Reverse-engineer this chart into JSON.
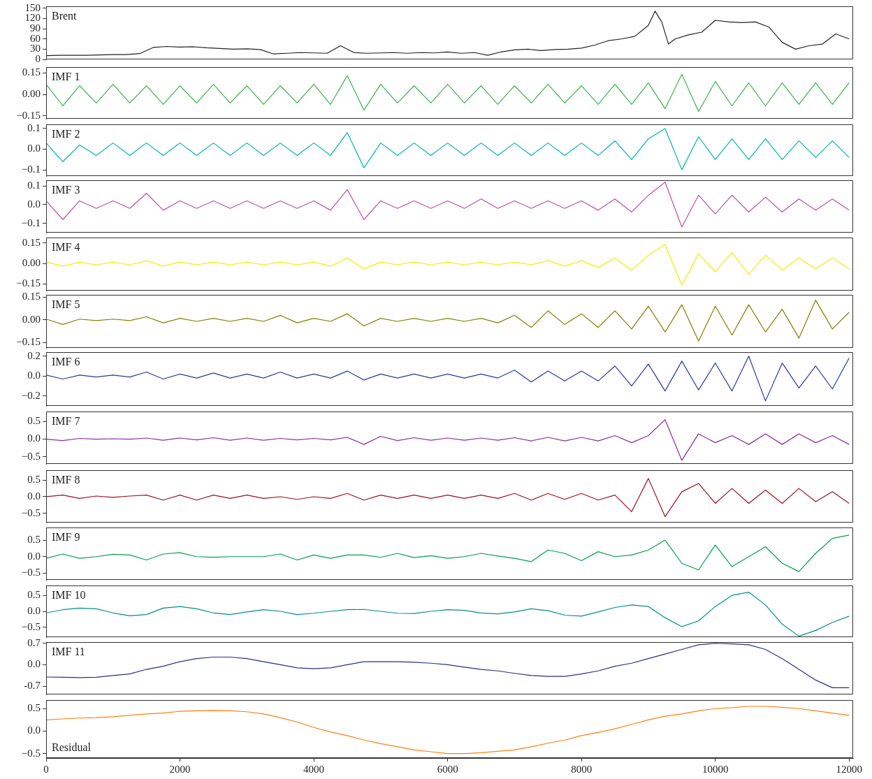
{
  "chart_data": [
    {
      "type": "line",
      "x": [
        0,
        200,
        400,
        600,
        800,
        1000,
        1200,
        1400,
        1600,
        1800,
        2000,
        2200,
        2400,
        2600,
        2800,
        3000,
        3200,
        3400,
        3600,
        3800,
        4000,
        4200,
        4400,
        4600,
        4800,
        5000,
        5200,
        5400,
        5600,
        5800,
        6000,
        6200,
        6400,
        6600,
        6800,
        7000,
        7200,
        7400,
        7600,
        7800,
        8000,
        8200,
        8400,
        8600,
        8800,
        9000,
        9100,
        9200,
        9300,
        9400,
        9600,
        9800,
        10000,
        10200,
        10400,
        10600,
        10800,
        11000,
        11200,
        11400,
        11600,
        11800,
        12000
      ],
      "series": [
        {
          "name": "Brent",
          "color": "#222222",
          "values": [
            11,
            12,
            12,
            12,
            13,
            14,
            14,
            17,
            35,
            38,
            36,
            37,
            34,
            32,
            30,
            31,
            29,
            16,
            18,
            20,
            19,
            18,
            40,
            20,
            18,
            19,
            20,
            18,
            20,
            19,
            22,
            18,
            20,
            12,
            22,
            28,
            30,
            26,
            29,
            30,
            33,
            42,
            55,
            60,
            68,
            100,
            142,
            110,
            45,
            60,
            72,
            80,
            115,
            110,
            108,
            110,
            95,
            50,
            30,
            40,
            45,
            75,
            60
          ]
        }
      ],
      "xlim": [
        0,
        12060
      ],
      "ylim": [
        0,
        156
      ],
      "yticks": [
        0,
        30,
        60,
        90,
        120,
        150
      ],
      "tick_labels": "y",
      "legend": false,
      "grid": false,
      "marker": "none",
      "line_style": "solid"
    },
    {
      "type": "line",
      "x": [
        0,
        250,
        500,
        750,
        1000,
        1250,
        1500,
        1750,
        2000,
        2250,
        2500,
        2750,
        3000,
        3250,
        3500,
        3750,
        4000,
        4250,
        4500,
        4750,
        5000,
        5250,
        5500,
        5750,
        6000,
        6250,
        6500,
        6750,
        7000,
        7250,
        7500,
        7750,
        8000,
        8250,
        8500,
        8750,
        9000,
        9250,
        9500,
        9750,
        10000,
        10250,
        10500,
        10750,
        11000,
        11250,
        11500,
        11750,
        12000
      ],
      "series": [
        {
          "name": "IMF 1",
          "color": "#3cb44b",
          "values": [
            0.07,
            -0.08,
            0.06,
            -0.06,
            0.07,
            -0.06,
            0.06,
            -0.07,
            0.06,
            -0.06,
            0.07,
            -0.06,
            0.06,
            -0.07,
            0.06,
            -0.06,
            0.07,
            -0.07,
            0.13,
            -0.11,
            0.07,
            -0.06,
            0.06,
            -0.06,
            0.07,
            -0.06,
            0.06,
            -0.07,
            0.06,
            -0.06,
            0.07,
            -0.06,
            0.06,
            -0.07,
            0.07,
            -0.07,
            0.08,
            -0.1,
            0.14,
            -0.12,
            0.09,
            -0.08,
            0.08,
            -0.08,
            0.08,
            -0.07,
            0.08,
            -0.07,
            0.08
          ]
        }
      ],
      "xlim": [
        0,
        12060
      ],
      "ylim": [
        -0.17,
        0.19
      ],
      "yticks": [
        {
          "value": -0.15,
          "label": "−0.15"
        },
        {
          "value": 0,
          "label": "0.00"
        },
        0.15
      ],
      "tick_labels": "y",
      "legend": false,
      "grid": false,
      "marker": "none",
      "line_style": "solid"
    },
    {
      "type": "line",
      "x": [
        0,
        250,
        500,
        750,
        1000,
        1250,
        1500,
        1750,
        2000,
        2250,
        2500,
        2750,
        3000,
        3250,
        3500,
        3750,
        4000,
        4250,
        4500,
        4750,
        5000,
        5250,
        5500,
        5750,
        6000,
        6250,
        6500,
        6750,
        7000,
        7250,
        7500,
        7750,
        8000,
        8250,
        8500,
        8750,
        9000,
        9250,
        9500,
        9750,
        10000,
        10250,
        10500,
        10750,
        11000,
        11250,
        11500,
        11750,
        12000
      ],
      "series": [
        {
          "name": "IMF 2",
          "color": "#00b5ad",
          "values": [
            0.03,
            -0.06,
            0.02,
            -0.03,
            0.03,
            -0.03,
            0.03,
            -0.03,
            0.03,
            -0.03,
            0.03,
            -0.03,
            0.03,
            -0.03,
            0.03,
            -0.03,
            0.03,
            -0.03,
            0.08,
            -0.09,
            0.03,
            -0.03,
            0.03,
            -0.03,
            0.03,
            -0.03,
            0.03,
            -0.03,
            0.03,
            -0.03,
            0.03,
            -0.03,
            0.03,
            -0.03,
            0.04,
            -0.05,
            0.05,
            0.1,
            -0.1,
            0.06,
            -0.05,
            0.05,
            -0.05,
            0.05,
            -0.05,
            0.04,
            -0.04,
            0.04,
            -0.04
          ]
        }
      ],
      "xlim": [
        0,
        12060
      ],
      "ylim": [
        -0.13,
        0.12
      ],
      "yticks": [
        {
          "value": -0.1,
          "label": "−0.1"
        },
        {
          "value": 0,
          "label": "0.0"
        },
        0.1
      ],
      "tick_labels": "y",
      "legend": false,
      "grid": false,
      "marker": "none",
      "line_style": "solid"
    },
    {
      "type": "line",
      "x": [
        0,
        250,
        500,
        750,
        1000,
        1250,
        1500,
        1750,
        2000,
        2250,
        2500,
        2750,
        3000,
        3250,
        3500,
        3750,
        4000,
        4250,
        4500,
        4750,
        5000,
        5250,
        5500,
        5750,
        6000,
        6250,
        6500,
        6750,
        7000,
        7250,
        7500,
        7750,
        8000,
        8250,
        8500,
        8750,
        9000,
        9250,
        9500,
        9750,
        10000,
        10250,
        10500,
        10750,
        11000,
        11250,
        11500,
        11750,
        12000
      ],
      "series": [
        {
          "name": "IMF 3",
          "color": "#c050a0",
          "values": [
            0.02,
            -0.08,
            0.02,
            -0.02,
            0.02,
            -0.02,
            0.06,
            -0.03,
            0.02,
            -0.02,
            0.02,
            -0.02,
            0.02,
            -0.02,
            0.02,
            -0.02,
            0.02,
            -0.03,
            0.08,
            -0.08,
            0.02,
            -0.02,
            0.02,
            -0.02,
            0.02,
            -0.02,
            0.03,
            -0.02,
            0.02,
            -0.02,
            0.02,
            -0.02,
            0.02,
            -0.03,
            0.03,
            -0.04,
            0.05,
            0.12,
            -0.12,
            0.05,
            -0.05,
            0.05,
            -0.04,
            0.04,
            -0.04,
            0.03,
            -0.03,
            0.03,
            -0.03
          ]
        }
      ],
      "xlim": [
        0,
        12060
      ],
      "ylim": [
        -0.15,
        0.13
      ],
      "yticks": [
        {
          "value": -0.1,
          "label": "−0.1"
        },
        {
          "value": 0,
          "label": "0.0"
        },
        0.1
      ],
      "tick_labels": "y",
      "legend": false,
      "grid": false,
      "marker": "none",
      "line_style": "solid"
    },
    {
      "type": "line",
      "x": [
        0,
        250,
        500,
        750,
        1000,
        1250,
        1500,
        1750,
        2000,
        2250,
        2500,
        2750,
        3000,
        3250,
        3500,
        3750,
        4000,
        4250,
        4500,
        4750,
        5000,
        5250,
        5500,
        5750,
        6000,
        6250,
        6500,
        6750,
        7000,
        7250,
        7500,
        7750,
        8000,
        8250,
        8500,
        8750,
        9000,
        9250,
        9500,
        9750,
        10000,
        10250,
        10500,
        10750,
        11000,
        11250,
        11500,
        11750,
        12000
      ],
      "series": [
        {
          "name": "IMF 4",
          "color": "#f0f000",
          "values": [
            0.01,
            -0.02,
            0.01,
            -0.01,
            0.01,
            -0.01,
            0.02,
            -0.02,
            0.01,
            -0.01,
            0.01,
            -0.01,
            0.01,
            -0.01,
            0.01,
            -0.01,
            0.01,
            -0.02,
            0.04,
            -0.04,
            0.01,
            -0.01,
            0.01,
            -0.01,
            0.01,
            -0.01,
            0.01,
            -0.01,
            0.01,
            -0.01,
            0.02,
            -0.02,
            0.02,
            -0.03,
            0.04,
            -0.05,
            0.06,
            0.14,
            -0.16,
            0.07,
            -0.06,
            0.08,
            -0.08,
            0.06,
            -0.05,
            0.04,
            -0.04,
            0.04,
            -0.04
          ]
        }
      ],
      "xlim": [
        0,
        12060
      ],
      "ylim": [
        -0.2,
        0.19
      ],
      "yticks": [
        {
          "value": -0.15,
          "label": "−0.15"
        },
        {
          "value": 0,
          "label": "0.00"
        },
        0.15
      ],
      "tick_labels": "y",
      "legend": false,
      "grid": false,
      "marker": "none",
      "line_style": "solid"
    },
    {
      "type": "line",
      "x": [
        0,
        250,
        500,
        750,
        1000,
        1250,
        1500,
        1750,
        2000,
        2250,
        2500,
        2750,
        3000,
        3250,
        3500,
        3750,
        4000,
        4250,
        4500,
        4750,
        5000,
        5250,
        5500,
        5750,
        6000,
        6250,
        6500,
        6750,
        7000,
        7250,
        7500,
        7750,
        8000,
        8250,
        8500,
        8750,
        9000,
        9250,
        9500,
        9750,
        10000,
        10250,
        10500,
        10750,
        11000,
        11250,
        11500,
        11750,
        12000
      ],
      "series": [
        {
          "name": "IMF 5",
          "color": "#808000",
          "values": [
            0.005,
            -0.03,
            0.005,
            -0.005,
            0.005,
            -0.005,
            0.02,
            -0.02,
            0.01,
            -0.01,
            0.01,
            -0.01,
            0.01,
            -0.01,
            0.03,
            -0.02,
            0.01,
            -0.01,
            0.04,
            -0.04,
            0.01,
            -0.01,
            0.01,
            -0.01,
            0.01,
            -0.01,
            0.01,
            -0.02,
            0.03,
            -0.05,
            0.06,
            -0.03,
            0.04,
            -0.05,
            0.06,
            -0.06,
            0.09,
            -0.08,
            0.1,
            -0.14,
            0.09,
            -0.1,
            0.1,
            -0.08,
            0.07,
            -0.12,
            0.13,
            -0.06,
            0.05
          ]
        }
      ],
      "xlim": [
        0,
        12060
      ],
      "ylim": [
        -0.185,
        0.165
      ],
      "yticks": [
        {
          "value": -0.15,
          "label": "−0.15"
        },
        {
          "value": 0,
          "label": "0.00"
        },
        0.15
      ],
      "tick_labels": "y",
      "legend": false,
      "grid": false,
      "marker": "none",
      "line_style": "solid"
    },
    {
      "type": "line",
      "x": [
        0,
        250,
        500,
        750,
        1000,
        1250,
        1500,
        1750,
        2000,
        2250,
        2500,
        2750,
        3000,
        3250,
        3500,
        3750,
        4000,
        4250,
        4500,
        4750,
        5000,
        5250,
        5500,
        5750,
        6000,
        6250,
        6500,
        6750,
        7000,
        7250,
        7500,
        7750,
        8000,
        8250,
        8500,
        8750,
        9000,
        9250,
        9500,
        9750,
        10000,
        10250,
        10500,
        10750,
        11000,
        11250,
        11500,
        11750,
        12000
      ],
      "series": [
        {
          "name": "IMF 6",
          "color": "#2b3a9a",
          "values": [
            0.01,
            -0.03,
            0.01,
            -0.01,
            0.01,
            -0.01,
            0.04,
            -0.03,
            0.02,
            -0.02,
            0.03,
            -0.02,
            0.02,
            -0.02,
            0.04,
            -0.02,
            0.02,
            -0.02,
            0.05,
            -0.04,
            0.02,
            -0.02,
            0.02,
            -0.02,
            0.02,
            -0.02,
            0.02,
            -0.02,
            0.06,
            -0.06,
            0.05,
            -0.05,
            0.05,
            -0.05,
            0.1,
            -0.1,
            0.12,
            -0.15,
            0.15,
            -0.14,
            0.13,
            -0.15,
            0.2,
            -0.25,
            0.13,
            -0.12,
            0.1,
            -0.13,
            0.18
          ]
        }
      ],
      "xlim": [
        0,
        12060
      ],
      "ylim": [
        -0.3,
        0.24
      ],
      "yticks": [
        {
          "value": -0.2,
          "label": "−0.2"
        },
        {
          "value": 0,
          "label": "0.0"
        },
        0.2
      ],
      "tick_labels": "y",
      "legend": false,
      "grid": false,
      "marker": "none",
      "line_style": "solid"
    },
    {
      "type": "line",
      "x": [
        0,
        250,
        500,
        750,
        1000,
        1250,
        1500,
        1750,
        2000,
        2250,
        2500,
        2750,
        3000,
        3250,
        3500,
        3750,
        4000,
        4250,
        4500,
        4750,
        5000,
        5250,
        5500,
        5750,
        6000,
        6250,
        6500,
        6750,
        7000,
        7250,
        7500,
        7750,
        8000,
        8250,
        8500,
        8750,
        9000,
        9250,
        9500,
        9750,
        10000,
        10250,
        10500,
        10750,
        11000,
        11250,
        11500,
        11750,
        12000
      ],
      "series": [
        {
          "name": "IMF 7",
          "color": "#8b2c9b",
          "values": [
            0.0,
            -0.04,
            0.02,
            0.0,
            0.01,
            0.0,
            0.03,
            -0.03,
            0.03,
            -0.02,
            0.04,
            -0.03,
            0.03,
            -0.03,
            0.02,
            -0.02,
            0.02,
            -0.02,
            0.05,
            -0.15,
            0.08,
            -0.04,
            0.04,
            -0.03,
            0.03,
            -0.03,
            0.03,
            -0.03,
            0.04,
            -0.05,
            0.05,
            -0.05,
            0.05,
            -0.05,
            0.1,
            -0.1,
            0.1,
            0.55,
            -0.6,
            0.15,
            -0.1,
            0.1,
            -0.15,
            0.15,
            -0.15,
            0.15,
            -0.1,
            0.1,
            -0.15
          ]
        }
      ],
      "xlim": [
        0,
        12060
      ],
      "ylim": [
        -0.7,
        0.78
      ],
      "yticks": [
        {
          "value": -0.5,
          "label": "−0.5"
        },
        {
          "value": 0,
          "label": "0.0"
        },
        0.5
      ],
      "tick_labels": "y",
      "legend": false,
      "grid": false,
      "marker": "none",
      "line_style": "solid"
    },
    {
      "type": "line",
      "x": [
        0,
        250,
        500,
        750,
        1000,
        1250,
        1500,
        1750,
        2000,
        2250,
        2500,
        2750,
        3000,
        3250,
        3500,
        3750,
        4000,
        4250,
        4500,
        4750,
        5000,
        5250,
        5500,
        5750,
        6000,
        6250,
        6500,
        6750,
        7000,
        7250,
        7500,
        7750,
        8000,
        8250,
        8500,
        8750,
        9000,
        9250,
        9500,
        9750,
        10000,
        10250,
        10500,
        10750,
        11000,
        11250,
        11500,
        11750,
        12000
      ],
      "series": [
        {
          "name": "IMF 8",
          "color": "#a01020",
          "values": [
            0.0,
            0.05,
            -0.05,
            0.02,
            -0.02,
            0.02,
            0.05,
            -0.1,
            0.05,
            -0.1,
            0.05,
            -0.05,
            0.05,
            -0.05,
            0.0,
            -0.08,
            0.0,
            -0.05,
            0.1,
            -0.1,
            0.05,
            -0.05,
            0.05,
            -0.05,
            0.05,
            -0.05,
            0.05,
            -0.05,
            0.1,
            -0.1,
            0.1,
            -0.08,
            0.1,
            -0.1,
            0.05,
            -0.45,
            0.55,
            -0.6,
            0.15,
            0.4,
            -0.2,
            0.25,
            -0.2,
            0.2,
            -0.2,
            0.25,
            -0.15,
            0.15,
            -0.2
          ]
        }
      ],
      "xlim": [
        0,
        12060
      ],
      "ylim": [
        -0.78,
        0.8
      ],
      "yticks": [
        {
          "value": -0.5,
          "label": "−0.5"
        },
        {
          "value": 0,
          "label": "0.0"
        },
        0.5
      ],
      "tick_labels": "y",
      "legend": false,
      "grid": false,
      "marker": "none",
      "line_style": "solid"
    },
    {
      "type": "line",
      "x": [
        0,
        250,
        500,
        750,
        1000,
        1250,
        1500,
        1750,
        2000,
        2250,
        2500,
        2750,
        3000,
        3250,
        3500,
        3750,
        4000,
        4250,
        4500,
        4750,
        5000,
        5250,
        5500,
        5750,
        6000,
        6250,
        6500,
        6750,
        7000,
        7250,
        7500,
        7750,
        8000,
        8250,
        8500,
        8750,
        9000,
        9250,
        9500,
        9750,
        10000,
        10250,
        10500,
        10750,
        11000,
        11250,
        11500,
        11750,
        12000
      ],
      "series": [
        {
          "name": "IMF 9",
          "color": "#00a050",
          "values": [
            -0.05,
            0.08,
            -0.05,
            0.0,
            0.07,
            0.05,
            -0.1,
            0.08,
            0.12,
            0.0,
            -0.02,
            0.0,
            0.0,
            0.0,
            0.08,
            -0.1,
            0.05,
            -0.05,
            0.05,
            0.05,
            -0.02,
            0.1,
            -0.03,
            0.03,
            -0.05,
            0.0,
            0.1,
            0.02,
            -0.05,
            -0.15,
            0.2,
            0.1,
            -0.12,
            0.15,
            0.0,
            0.05,
            0.2,
            0.5,
            -0.2,
            -0.4,
            0.35,
            -0.3,
            0.0,
            0.3,
            -0.2,
            -0.45,
            0.1,
            0.55,
            0.65
          ]
        }
      ],
      "xlim": [
        0,
        12060
      ],
      "ylim": [
        -0.7,
        0.88
      ],
      "yticks": [
        {
          "value": -0.5,
          "label": "−0.5"
        },
        {
          "value": 0,
          "label": "0.0"
        },
        0.5
      ],
      "tick_labels": "y",
      "legend": false,
      "grid": false,
      "marker": "none",
      "line_style": "solid"
    },
    {
      "type": "line",
      "x": [
        0,
        250,
        500,
        750,
        1000,
        1250,
        1500,
        1750,
        2000,
        2250,
        2500,
        2750,
        3000,
        3250,
        3500,
        3750,
        4000,
        4250,
        4500,
        4750,
        5000,
        5250,
        5500,
        5750,
        6000,
        6250,
        6500,
        6750,
        7000,
        7250,
        7500,
        7750,
        8000,
        8250,
        8500,
        8750,
        9000,
        9250,
        9500,
        9750,
        10000,
        10250,
        10500,
        10750,
        11000,
        11250,
        11500,
        11750,
        12000
      ],
      "series": [
        {
          "name": "IMF 10",
          "color": "#00908a",
          "values": [
            -0.05,
            0.05,
            0.1,
            0.08,
            -0.05,
            -0.14,
            -0.1,
            0.1,
            0.15,
            0.08,
            -0.05,
            -0.1,
            -0.02,
            0.05,
            0.0,
            -0.1,
            -0.06,
            0.0,
            0.05,
            0.06,
            0.0,
            -0.06,
            -0.07,
            0.0,
            0.05,
            0.03,
            -0.05,
            -0.08,
            -0.02,
            0.08,
            0.02,
            -0.12,
            -0.15,
            -0.02,
            0.12,
            0.2,
            0.15,
            -0.2,
            -0.48,
            -0.3,
            0.15,
            0.5,
            0.6,
            0.2,
            -0.4,
            -0.78,
            -0.6,
            -0.35,
            -0.15
          ]
        }
      ],
      "xlim": [
        0,
        12060
      ],
      "ylim": [
        -0.81,
        0.81
      ],
      "yticks": [
        {
          "value": -0.5,
          "label": "−0.5"
        },
        {
          "value": 0,
          "label": "0.0"
        },
        0.5
      ],
      "tick_labels": "y",
      "legend": false,
      "grid": false,
      "marker": "none",
      "line_style": "solid"
    },
    {
      "type": "line",
      "x": [
        0,
        250,
        500,
        750,
        1000,
        1250,
        1500,
        1750,
        2000,
        2250,
        2500,
        2750,
        3000,
        3250,
        3500,
        3750,
        4000,
        4250,
        4500,
        4750,
        5000,
        5250,
        5500,
        5750,
        6000,
        6250,
        6500,
        6750,
        7000,
        7250,
        7500,
        7750,
        8000,
        8250,
        8500,
        8750,
        9000,
        9250,
        9500,
        9750,
        10000,
        10250,
        10500,
        10750,
        11000,
        11250,
        11500,
        11750,
        12000
      ],
      "series": [
        {
          "name": "IMF 11",
          "color": "#2d2d8c",
          "values": [
            -0.4,
            -0.41,
            -0.42,
            -0.41,
            -0.35,
            -0.3,
            -0.15,
            -0.05,
            0.1,
            0.2,
            0.25,
            0.25,
            0.2,
            0.1,
            0.0,
            -0.1,
            -0.13,
            -0.1,
            0.0,
            0.1,
            0.1,
            0.1,
            0.08,
            0.05,
            0.0,
            -0.08,
            -0.15,
            -0.2,
            -0.28,
            -0.35,
            -0.38,
            -0.38,
            -0.3,
            -0.2,
            -0.05,
            0.05,
            0.2,
            0.35,
            0.5,
            0.65,
            0.7,
            0.68,
            0.65,
            0.5,
            0.2,
            -0.15,
            -0.5,
            -0.75,
            -0.75
          ]
        }
      ],
      "xlim": [
        0,
        12060
      ],
      "ylim": [
        -0.97,
        0.74
      ],
      "yticks": [
        {
          "value": -0.7,
          "label": "-0.7"
        },
        {
          "value": 0,
          "label": "0.0"
        },
        0.7
      ],
      "tick_labels": "y",
      "legend": false,
      "grid": false,
      "marker": "none",
      "line_style": "solid"
    },
    {
      "type": "line",
      "x": [
        0,
        250,
        500,
        750,
        1000,
        1250,
        1500,
        1750,
        2000,
        2250,
        2500,
        2750,
        3000,
        3250,
        3500,
        3750,
        4000,
        4250,
        4500,
        4750,
        5000,
        5250,
        5500,
        5750,
        6000,
        6250,
        6500,
        6750,
        7000,
        7250,
        7500,
        7750,
        8000,
        8250,
        8500,
        8750,
        9000,
        9250,
        9500,
        9750,
        10000,
        10250,
        10500,
        10750,
        11000,
        11250,
        11500,
        11750,
        12000
      ],
      "series": [
        {
          "name": "Residual",
          "color": "#ff7f0e",
          "values": [
            0.25,
            0.27,
            0.29,
            0.3,
            0.32,
            0.35,
            0.38,
            0.4,
            0.44,
            0.45,
            0.46,
            0.45,
            0.43,
            0.38,
            0.3,
            0.2,
            0.08,
            -0.02,
            -0.1,
            -0.2,
            -0.28,
            -0.35,
            -0.42,
            -0.46,
            -0.5,
            -0.5,
            -0.48,
            -0.45,
            -0.42,
            -0.35,
            -0.27,
            -0.2,
            -0.1,
            -0.03,
            0.05,
            0.15,
            0.25,
            0.33,
            0.38,
            0.45,
            0.5,
            0.52,
            0.55,
            0.55,
            0.53,
            0.5,
            0.45,
            0.4,
            0.35
          ]
        }
      ],
      "xlim": [
        0,
        12060
      ],
      "xticks": [
        0,
        2000,
        4000,
        6000,
        8000,
        10000,
        12000
      ],
      "ylim": [
        -0.6,
        0.69
      ],
      "yticks": [
        {
          "value": -0.5,
          "label": "−0.5"
        },
        {
          "value": 0,
          "label": "0.0"
        },
        0.5
      ],
      "legend": false,
      "grid": false,
      "marker": "none",
      "line_style": "solid"
    }
  ]
}
